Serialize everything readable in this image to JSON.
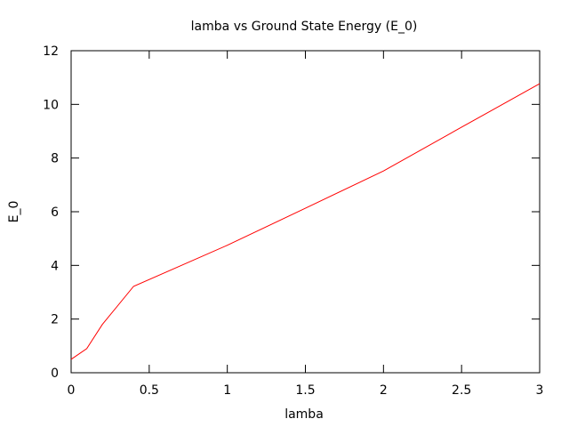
{
  "chart_data": {
    "type": "line",
    "title": "lamba vs Ground State Energy (E_0)",
    "xlabel": "lamba",
    "ylabel": "E_0",
    "xlim": [
      0,
      3
    ],
    "ylim": [
      0,
      12
    ],
    "xticks": [
      0,
      0.5,
      1,
      1.5,
      2,
      2.5,
      3
    ],
    "xtick_labels": [
      "0",
      "0.5",
      "1",
      "1.5",
      "2",
      "2.5",
      "3"
    ],
    "yticks": [
      0,
      2,
      4,
      6,
      8,
      10,
      12
    ],
    "ytick_labels": [
      "0",
      "2",
      "4",
      "6",
      "8",
      "10",
      "12"
    ],
    "grid": false,
    "legend": "none",
    "series": [
      {
        "color": "#ff0000",
        "x": [
          0,
          0.1,
          0.2,
          0.4,
          1.0,
          1.5,
          2.0,
          2.5,
          3.0
        ],
        "y": [
          0.5,
          0.9,
          1.8,
          3.22,
          4.75,
          6.13,
          7.52,
          9.15,
          10.77
        ]
      }
    ]
  }
}
